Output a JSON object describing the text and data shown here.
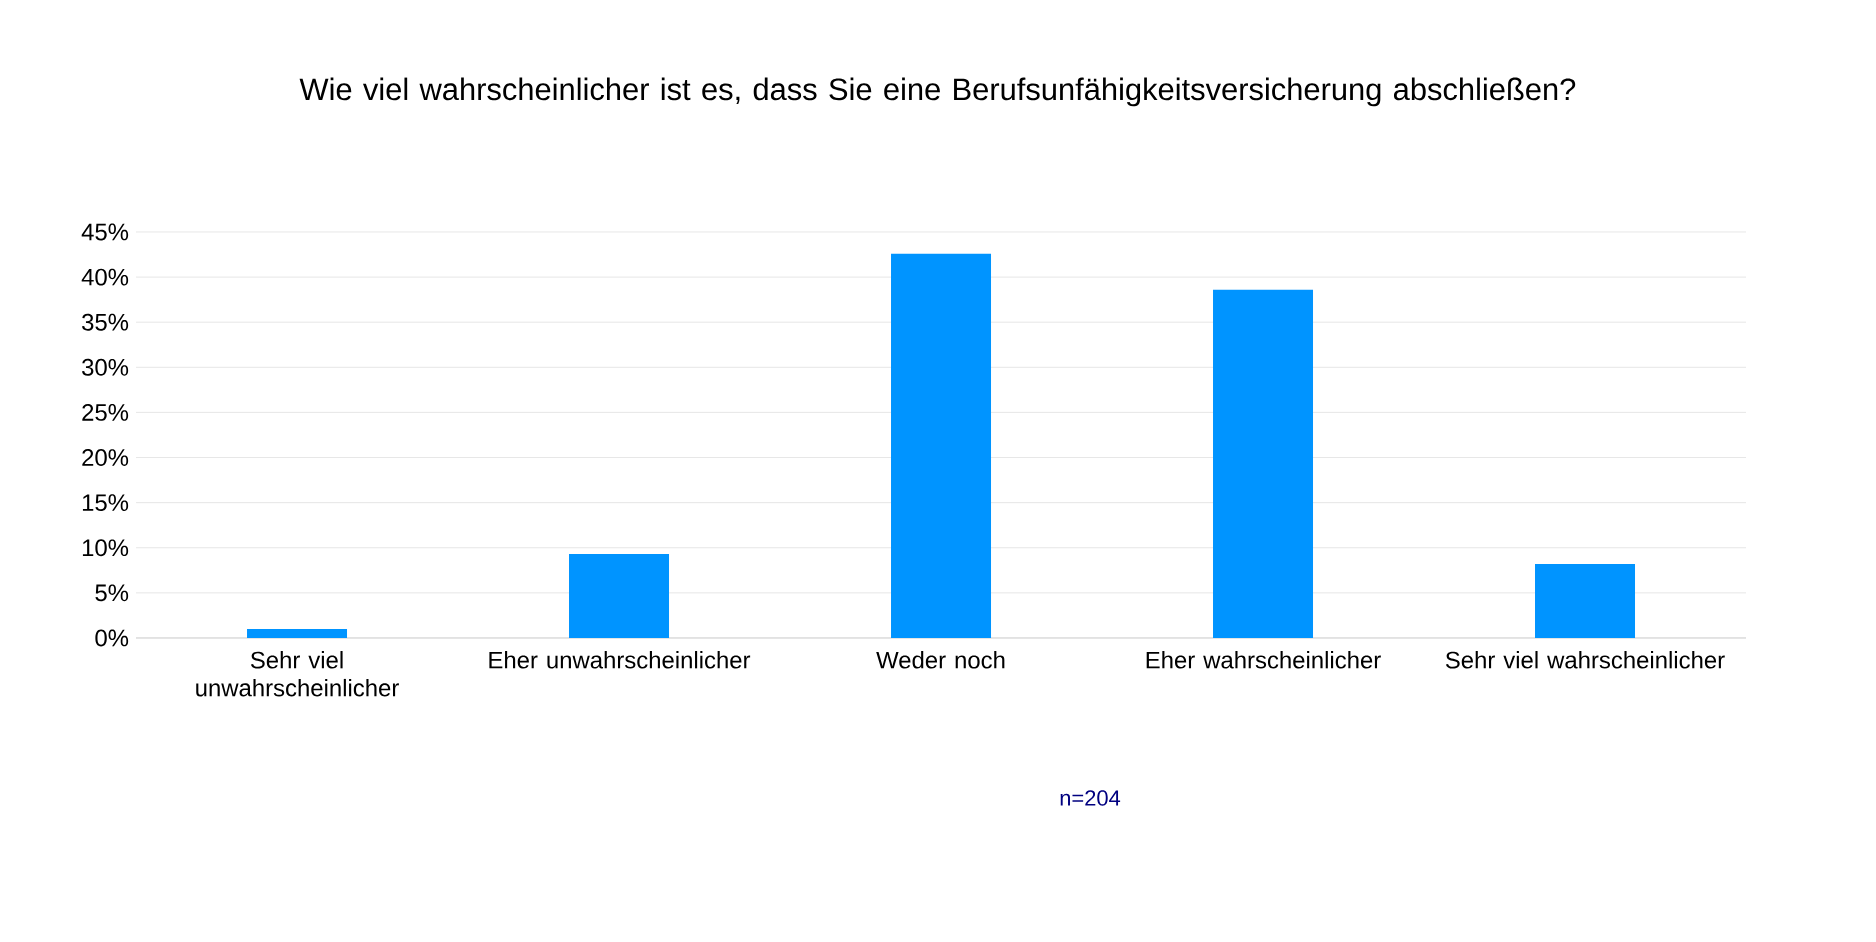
{
  "chart_data": {
    "type": "bar",
    "title": "Wie viel wahrscheinlicher ist es, dass Sie eine Berufsunfähigkeitsversicherung abschließen?",
    "categories": [
      "Sehr viel unwahrscheinlicher",
      "Eher unwahrscheinlicher",
      "Weder noch",
      "Eher wahrscheinlicher",
      "Sehr viel wahrscheinlicher"
    ],
    "values": [
      1.0,
      9.3,
      42.6,
      38.6,
      8.2
    ],
    "color": "#0094ff",
    "ylim": [
      0,
      45
    ],
    "yticks": [
      {
        "value": 0,
        "label": "0%"
      },
      {
        "value": 5,
        "label": "5%"
      },
      {
        "value": 10,
        "label": "10%"
      },
      {
        "value": 15,
        "label": "15%"
      },
      {
        "value": 20,
        "label": "20%"
      },
      {
        "value": 25,
        "label": "25%"
      },
      {
        "value": 30,
        "label": "30%"
      },
      {
        "value": 35,
        "label": "35%"
      },
      {
        "value": 40,
        "label": "40%"
      },
      {
        "value": 45,
        "label": "45%"
      }
    ],
    "grid": "y",
    "annotations": [
      "n=204"
    ]
  }
}
